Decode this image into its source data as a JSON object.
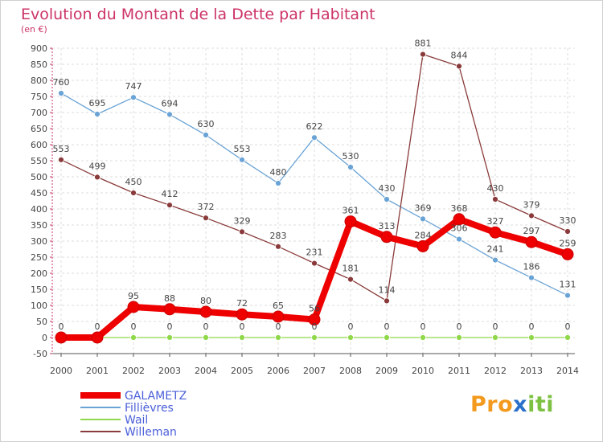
{
  "chart_data": {
    "type": "line",
    "title": "Evolution du Montant de la Dette par Habitant",
    "subtitle": "(en €)",
    "xlabel": "",
    "ylabel": "",
    "x": [
      "2000",
      "2001",
      "2002",
      "2003",
      "2004",
      "2005",
      "2006",
      "2007",
      "2008",
      "2009",
      "2010",
      "2011",
      "2012",
      "2013",
      "2014"
    ],
    "ylim": [
      -50,
      900
    ],
    "yticks": [
      -50,
      0,
      50,
      100,
      150,
      200,
      250,
      300,
      350,
      400,
      450,
      500,
      550,
      600,
      650,
      700,
      750,
      800,
      850,
      900
    ],
    "grid": true,
    "legend_position": "bottom-left",
    "series": [
      {
        "name": "GALAMETZ",
        "color": "#ee0000",
        "values": [
          0,
          0,
          95,
          88,
          80,
          72,
          65,
          56,
          361,
          313,
          284,
          368,
          327,
          297,
          259
        ]
      },
      {
        "name": "Fillièvres",
        "color": "#6aa3d5",
        "values": [
          760,
          695,
          747,
          694,
          630,
          553,
          480,
          622,
          530,
          430,
          369,
          306,
          241,
          186,
          131
        ]
      },
      {
        "name": "Wail",
        "color": "#8fd84a",
        "values": [
          0,
          0,
          0,
          0,
          0,
          0,
          0,
          0,
          0,
          0,
          0,
          0,
          0,
          0,
          0
        ]
      },
      {
        "name": "Willeman",
        "color": "#8a3a3a",
        "values": [
          553,
          499,
          450,
          412,
          372,
          329,
          283,
          231,
          181,
          114,
          881,
          844,
          430,
          379,
          330
        ]
      }
    ]
  },
  "logo": {
    "p1": "Pro",
    "p2": "x",
    "p3": "iti"
  }
}
